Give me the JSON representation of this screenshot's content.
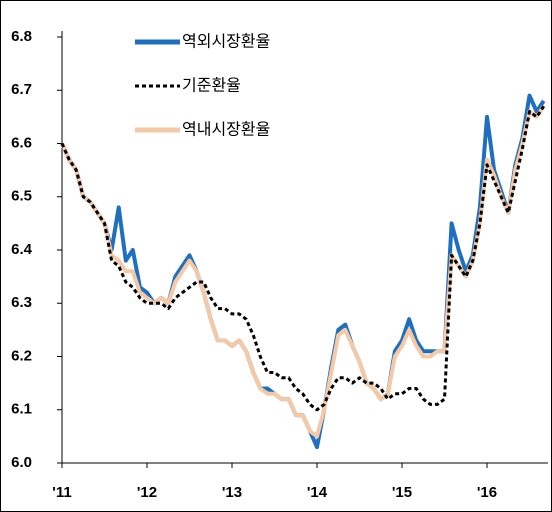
{
  "chart_data": {
    "type": "line",
    "categories": [
      "'11",
      null,
      null,
      null,
      null,
      null,
      null,
      null,
      null,
      null,
      null,
      null,
      "'12",
      null,
      null,
      null,
      null,
      null,
      null,
      null,
      null,
      null,
      null,
      null,
      "'13",
      null,
      null,
      null,
      null,
      null,
      null,
      null,
      null,
      null,
      null,
      null,
      "'14",
      null,
      null,
      null,
      null,
      null,
      null,
      null,
      null,
      null,
      null,
      null,
      "'15",
      null,
      null,
      null,
      null,
      null,
      null,
      null,
      null,
      null,
      null,
      null,
      "'16",
      null,
      null,
      null,
      null,
      null,
      null,
      null,
      null
    ],
    "series": [
      {
        "name": "역외시장환율",
        "color": "#1f6fc0",
        "line_style": "solid",
        "values": [
          6.6,
          6.57,
          6.55,
          6.5,
          6.49,
          6.47,
          6.45,
          6.4,
          6.48,
          6.38,
          6.4,
          6.33,
          6.32,
          6.3,
          6.31,
          6.3,
          6.35,
          6.37,
          6.39,
          6.36,
          6.32,
          6.27,
          6.23,
          6.23,
          6.22,
          6.23,
          6.21,
          6.17,
          6.14,
          6.14,
          6.13,
          6.12,
          6.12,
          6.09,
          6.09,
          6.06,
          6.03,
          6.1,
          6.18,
          6.25,
          6.26,
          6.22,
          6.19,
          6.15,
          6.14,
          6.12,
          6.13,
          6.21,
          6.23,
          6.27,
          6.23,
          6.21,
          6.21,
          6.21,
          6.21,
          6.45,
          6.4,
          6.36,
          6.39,
          6.48,
          6.65,
          6.55,
          6.51,
          6.47,
          6.56,
          6.61,
          6.69,
          6.66,
          6.68
        ]
      },
      {
        "name": "역내시장환율",
        "color": "#f5c9a6",
        "line_style": "solid",
        "values": [
          6.6,
          6.57,
          6.55,
          6.5,
          6.49,
          6.47,
          6.45,
          6.39,
          6.38,
          6.36,
          6.36,
          6.32,
          6.31,
          6.3,
          6.31,
          6.3,
          6.34,
          6.36,
          6.38,
          6.36,
          6.32,
          6.27,
          6.23,
          6.23,
          6.22,
          6.23,
          6.21,
          6.17,
          6.14,
          6.13,
          6.13,
          6.12,
          6.12,
          6.09,
          6.09,
          6.06,
          6.05,
          6.1,
          6.17,
          6.24,
          6.25,
          6.22,
          6.19,
          6.15,
          6.14,
          6.12,
          6.13,
          6.2,
          6.22,
          6.25,
          6.22,
          6.2,
          6.2,
          6.21,
          6.21,
          6.39,
          6.37,
          6.35,
          6.38,
          6.45,
          6.57,
          6.54,
          6.5,
          6.47,
          6.55,
          6.6,
          6.66,
          6.65,
          6.67
        ]
      },
      {
        "name": "기준환율",
        "color": "#000000",
        "line_style": "dashed",
        "values": [
          6.6,
          6.57,
          6.55,
          6.5,
          6.49,
          6.47,
          6.45,
          6.38,
          6.37,
          6.34,
          6.33,
          6.31,
          6.3,
          6.3,
          6.3,
          6.29,
          6.31,
          6.32,
          6.33,
          6.34,
          6.34,
          6.31,
          6.29,
          6.29,
          6.28,
          6.28,
          6.27,
          6.24,
          6.2,
          6.17,
          6.17,
          6.16,
          6.16,
          6.14,
          6.13,
          6.11,
          6.1,
          6.11,
          6.14,
          6.16,
          6.16,
          6.15,
          6.16,
          6.15,
          6.15,
          6.14,
          6.12,
          6.13,
          6.13,
          6.14,
          6.14,
          6.12,
          6.11,
          6.11,
          6.12,
          6.39,
          6.37,
          6.35,
          6.38,
          6.45,
          6.56,
          6.53,
          6.5,
          6.47,
          6.53,
          6.59,
          6.66,
          6.65,
          6.67
        ]
      }
    ],
    "legend_order": [
      0,
      2,
      1
    ],
    "legend": "top",
    "ylim": [
      6.0,
      6.8
    ],
    "yticks": [
      {
        "value": 6.0,
        "label": "6.0"
      },
      6.1,
      6.2,
      6.3,
      6.4,
      6.5,
      6.6,
      6.7,
      6.8
    ],
    "grid": false
  }
}
